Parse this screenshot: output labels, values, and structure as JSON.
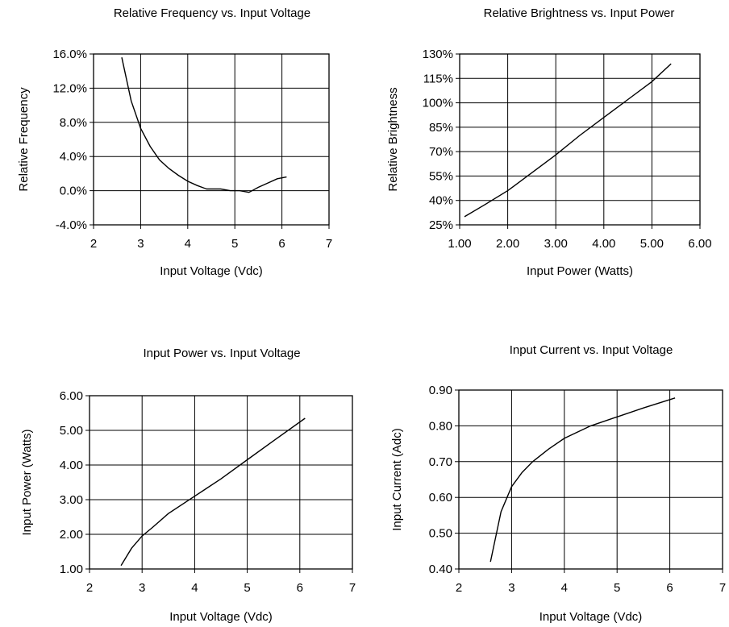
{
  "chart_data": [
    {
      "id": "freq",
      "type": "line",
      "title": "Relative Frequency vs. Input Voltage",
      "xlabel": "Input Voltage (Vdc)",
      "ylabel": "Relative Frequency",
      "xlim": [
        2,
        7
      ],
      "ylim": [
        -0.04,
        0.16
      ],
      "xticks": [
        2,
        3,
        4,
        5,
        6,
        7
      ],
      "xtick_labels": [
        "2",
        "3",
        "4",
        "5",
        "6",
        "7"
      ],
      "yticks": [
        -0.04,
        0.0,
        0.04,
        0.08,
        0.12,
        0.16
      ],
      "ytick_labels": [
        "-4.0%",
        "0.0%",
        "4.0%",
        "8.0%",
        "12.0%",
        "16.0%"
      ],
      "grid": true,
      "series": [
        {
          "x": [
            2.6,
            2.8,
            3.0,
            3.2,
            3.4,
            3.6,
            3.8,
            4.0,
            4.2,
            4.4,
            4.5,
            4.7,
            4.9,
            5.1,
            5.3,
            5.5,
            5.7,
            5.9,
            6.1
          ],
          "y": [
            0.156,
            0.105,
            0.073,
            0.052,
            0.036,
            0.026,
            0.018,
            0.011,
            0.006,
            0.002,
            0.002,
            0.002,
            0.0,
            0.0,
            -0.002,
            0.004,
            0.009,
            0.014,
            0.016
          ]
        }
      ]
    },
    {
      "id": "bright",
      "type": "line",
      "title": "Relative Brightness vs. Input Power",
      "xlabel": "Input Power (Watts)",
      "ylabel": "Relative Brightness",
      "xlim": [
        1.0,
        6.0
      ],
      "ylim": [
        0.25,
        1.3
      ],
      "xticks": [
        1.0,
        2.0,
        3.0,
        4.0,
        5.0,
        6.0
      ],
      "xtick_labels": [
        "1.00",
        "2.00",
        "3.00",
        "4.00",
        "5.00",
        "6.00"
      ],
      "yticks": [
        0.25,
        0.4,
        0.55,
        0.7,
        0.85,
        1.0,
        1.15,
        1.3
      ],
      "ytick_labels": [
        "25%",
        "40%",
        "55%",
        "70%",
        "85%",
        "100%",
        "115%",
        "130%"
      ],
      "grid": true,
      "series": [
        {
          "x": [
            1.1,
            1.5,
            2.0,
            2.5,
            3.0,
            3.5,
            4.0,
            4.5,
            5.0,
            5.4
          ],
          "y": [
            0.3,
            0.37,
            0.46,
            0.57,
            0.68,
            0.8,
            0.91,
            1.02,
            1.13,
            1.24
          ]
        }
      ]
    },
    {
      "id": "power",
      "type": "line",
      "title": "Input Power vs. Input Voltage",
      "xlabel": "Input Voltage (Vdc)",
      "ylabel": "Input Power (Watts)",
      "xlim": [
        2,
        7
      ],
      "ylim": [
        1.0,
        6.0
      ],
      "xticks": [
        2,
        3,
        4,
        5,
        6,
        7
      ],
      "xtick_labels": [
        "2",
        "3",
        "4",
        "5",
        "6",
        "7"
      ],
      "yticks": [
        1.0,
        2.0,
        3.0,
        4.0,
        5.0,
        6.0
      ],
      "ytick_labels": [
        "1.00",
        "2.00",
        "3.00",
        "4.00",
        "5.00",
        "6.00"
      ],
      "grid": true,
      "series": [
        {
          "x": [
            2.6,
            2.8,
            3.0,
            3.2,
            3.5,
            4.0,
            4.5,
            5.0,
            5.5,
            6.1
          ],
          "y": [
            1.1,
            1.6,
            1.95,
            2.2,
            2.6,
            3.1,
            3.6,
            4.15,
            4.7,
            5.35
          ]
        }
      ]
    },
    {
      "id": "current",
      "type": "line",
      "title": "Input Current vs. Input Voltage",
      "xlabel": "Input Voltage (Vdc)",
      "ylabel": "Input Current (Adc)",
      "xlim": [
        2,
        7
      ],
      "ylim": [
        0.4,
        0.9
      ],
      "xticks": [
        2,
        3,
        4,
        5,
        6,
        7
      ],
      "xtick_labels": [
        "2",
        "3",
        "4",
        "5",
        "6",
        "7"
      ],
      "yticks": [
        0.4,
        0.5,
        0.6,
        0.7,
        0.8,
        0.9
      ],
      "ytick_labels": [
        "0.40",
        "0.50",
        "0.60",
        "0.70",
        "0.80",
        "0.90"
      ],
      "grid": true,
      "series": [
        {
          "x": [
            2.6,
            2.8,
            3.0,
            3.2,
            3.4,
            3.7,
            4.0,
            4.5,
            5.0,
            5.5,
            6.1
          ],
          "y": [
            0.42,
            0.56,
            0.63,
            0.67,
            0.7,
            0.735,
            0.765,
            0.8,
            0.825,
            0.85,
            0.878
          ]
        }
      ]
    }
  ]
}
